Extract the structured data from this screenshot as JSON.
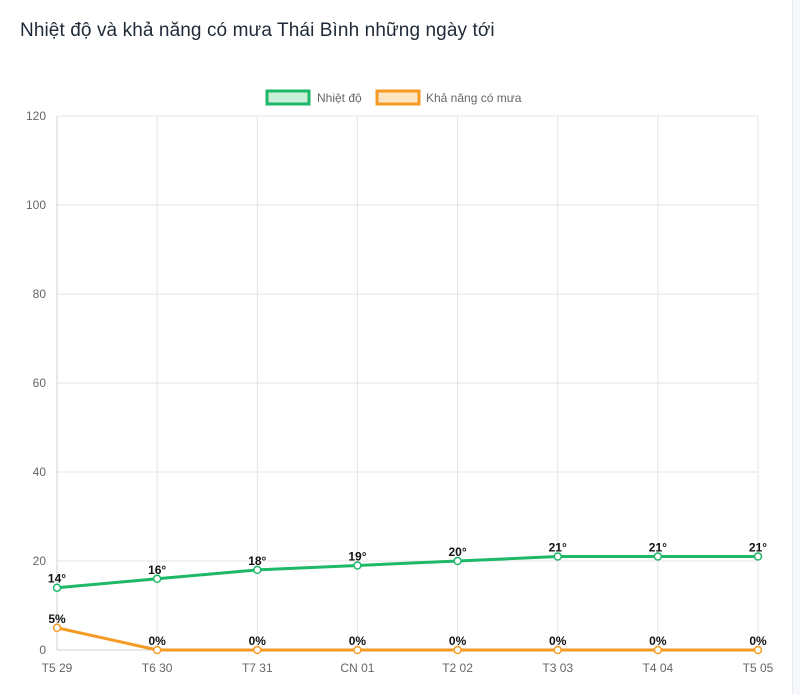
{
  "header": {
    "title": "Nhiệt độ và khả năng có mưa Thái Bình những ngày tới"
  },
  "colors": {
    "temperature": "#1db868",
    "temperature_fill": "#c9efd9",
    "rain": "#f59a23",
    "rain_fill": "#fde4c3"
  },
  "chart_data": {
    "type": "line",
    "categories": [
      "T5 29",
      "T6 30",
      "T7 31",
      "CN 01",
      "T2 02",
      "T3 03",
      "T4 04",
      "T5 05"
    ],
    "ylim": [
      0,
      120
    ],
    "yticks": [
      0,
      20,
      40,
      60,
      80,
      100,
      120
    ],
    "grid": true,
    "legend_position": "top",
    "series": [
      {
        "name": "Nhiệt độ",
        "values": [
          14,
          16,
          18,
          19,
          20,
          21,
          21,
          21
        ],
        "labels": [
          "14°",
          "16°",
          "18°",
          "19°",
          "20°",
          "21°",
          "21°",
          "21°"
        ]
      },
      {
        "name": "Khả năng có mưa",
        "values": [
          5,
          0,
          0,
          0,
          0,
          0,
          0,
          0
        ],
        "labels": [
          "5%",
          "0%",
          "0%",
          "0%",
          "0%",
          "0%",
          "0%",
          "0%"
        ]
      }
    ]
  }
}
